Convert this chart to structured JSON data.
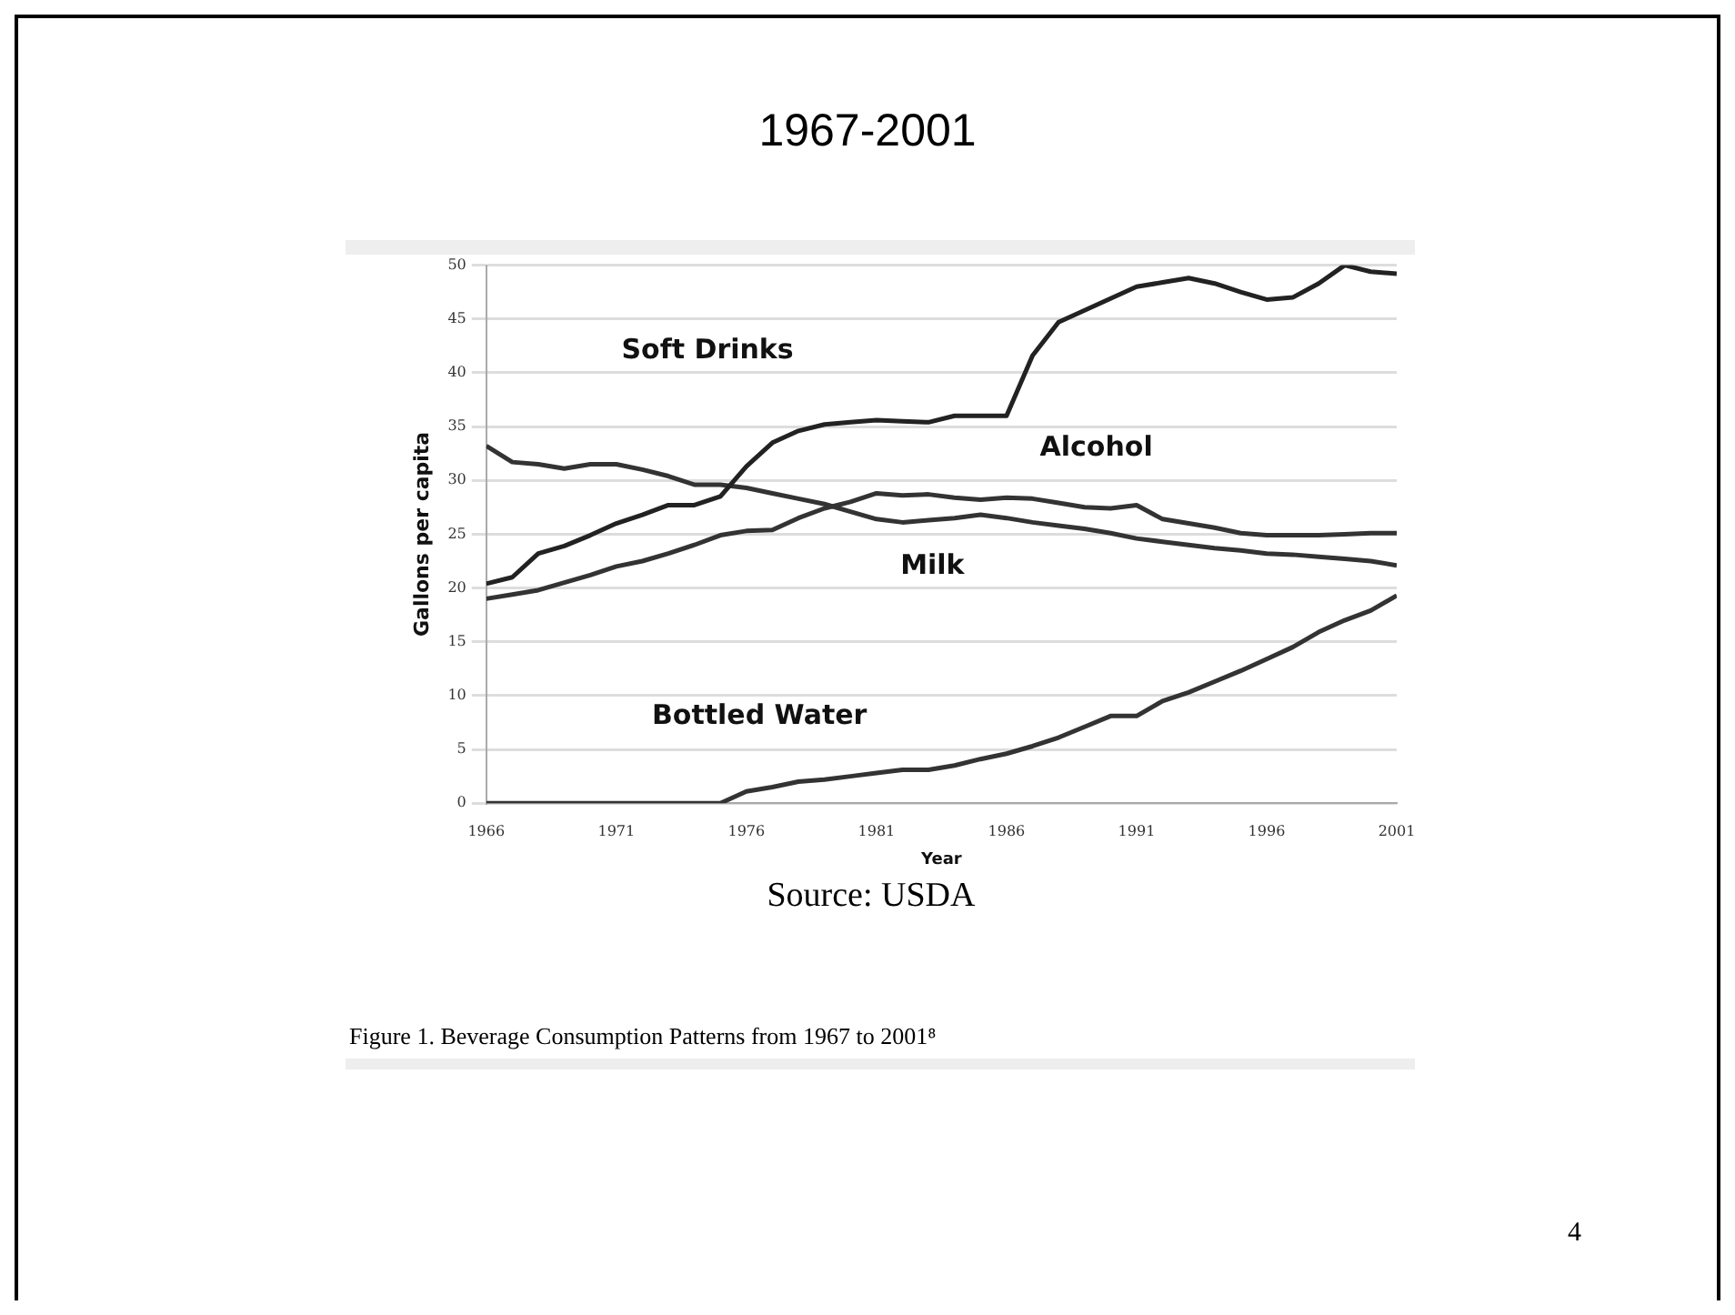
{
  "chart_data": {
    "type": "line",
    "title": "1967-2001",
    "xlabel": "Year",
    "ylabel": "Gallons per capita",
    "x": [
      1966,
      1967,
      1968,
      1969,
      1970,
      1971,
      1972,
      1973,
      1974,
      1975,
      1976,
      1977,
      1978,
      1979,
      1980,
      1981,
      1982,
      1983,
      1984,
      1985,
      1986,
      1987,
      1988,
      1989,
      1990,
      1991,
      1992,
      1993,
      1994,
      1995,
      1996,
      1997,
      1998,
      1999,
      2000,
      2001
    ],
    "series": [
      {
        "name": "Soft Drinks",
        "color": "#222222",
        "values": [
          20.4,
          21,
          23.2,
          23.9,
          24.9,
          26,
          26.8,
          27.7,
          27.7,
          28.5,
          31.3,
          33.5,
          34.6,
          35.2,
          35.4,
          35.6,
          35.5,
          35.4,
          36,
          36,
          36,
          41.6,
          44.7,
          45.8,
          46.9,
          48,
          48.4,
          48.8,
          48.3,
          47.5,
          46.8,
          47,
          48.3,
          50,
          49.4,
          49.2
        ]
      },
      {
        "name": "Alcohol",
        "color": "#333333",
        "values": [
          19,
          19.4,
          19.8,
          20.5,
          21.2,
          22,
          22.5,
          23.2,
          24,
          24.9,
          25.3,
          25.4,
          26.5,
          27.4,
          28,
          28.8,
          28.6,
          28.7,
          28.4,
          28.2,
          28.4,
          28.3,
          27.9,
          27.5,
          27.4,
          27.7,
          26.4,
          26,
          25.6,
          25.1,
          24.9,
          24.9,
          24.9,
          25,
          25.1,
          25.1
        ]
      },
      {
        "name": "Milk",
        "color": "#333333",
        "values": [
          33.2,
          31.7,
          31.5,
          31.1,
          31.5,
          31.5,
          31,
          30.4,
          29.6,
          29.6,
          29.3,
          28.8,
          28.3,
          27.8,
          27.1,
          26.4,
          26.1,
          26.3,
          26.5,
          26.8,
          26.5,
          26.1,
          25.8,
          25.5,
          25.1,
          24.6,
          24.3,
          24,
          23.7,
          23.5,
          23.2,
          23.1,
          22.9,
          22.7,
          22.5,
          22.1
        ]
      },
      {
        "name": "Bottled Water",
        "color": "#333333",
        "values": [
          0,
          0,
          0,
          0,
          0,
          0,
          0,
          0,
          0,
          0,
          1.1,
          1.5,
          2,
          2.2,
          2.5,
          2.8,
          3.1,
          3.1,
          3.5,
          4.1,
          4.6,
          5.3,
          6.1,
          7.1,
          8.1,
          8.1,
          9.5,
          10.3,
          11.3,
          12.3,
          13.4,
          14.5,
          15.9,
          17,
          17.9,
          19.3
        ]
      }
    ],
    "xlim": [
      1966,
      2001
    ],
    "xticks": [
      1966,
      1971,
      1976,
      1981,
      1986,
      1991,
      1996,
      2001
    ],
    "ylim": [
      0,
      50
    ],
    "yticks": [
      0,
      5,
      10,
      15,
      20,
      25,
      30,
      35,
      40,
      45,
      50
    ],
    "grid": "y",
    "legend": false,
    "marker": "none",
    "line_style": "solid",
    "annotations": [
      "Source: USDA",
      "Figure 1. Beverage Consumption Patterns from 1967 to 2001⁸",
      "4"
    ]
  }
}
